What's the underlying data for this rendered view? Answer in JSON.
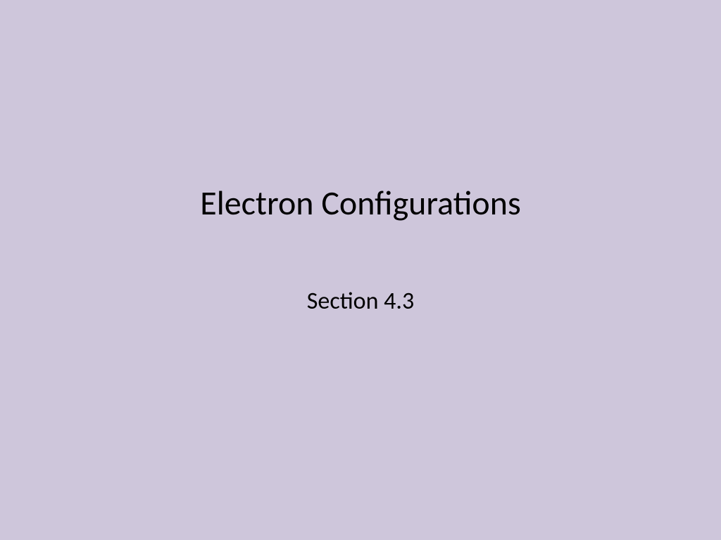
{
  "slide": {
    "title": "Electron Configurations",
    "subtitle": "Section 4.3",
    "background_color": "#cec6db",
    "title_color": "#000000",
    "subtitle_color": "#000000",
    "title_fontsize": 48,
    "subtitle_fontsize": 34
  }
}
